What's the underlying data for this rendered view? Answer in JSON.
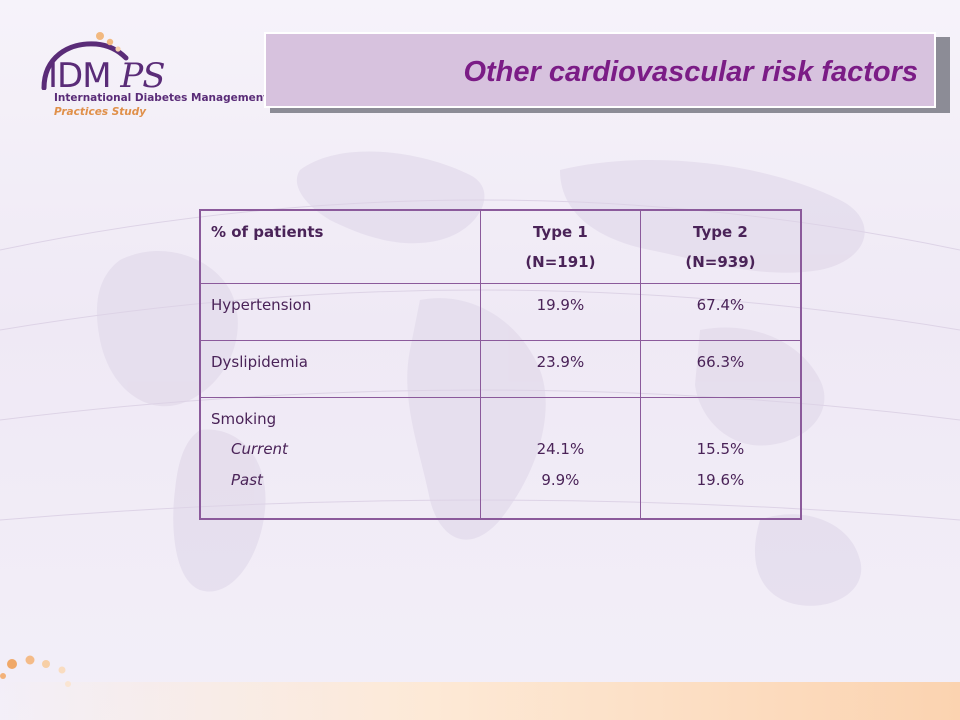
{
  "logo": {
    "text_main": "IDM",
    "text_ps": "PS",
    "line1": "International Diabetes Management",
    "line2": "Practices Study"
  },
  "title": "Other cardiovascular risk factors",
  "table": {
    "header": {
      "col1": "% of patients",
      "col2_line1": "Type 1",
      "col2_line2": "(N=191)",
      "col3_line1": "Type 2",
      "col3_line2": "(N=939)"
    },
    "rows": [
      {
        "label": "Hypertension",
        "type1": "19.9%",
        "type2": "67.4%"
      },
      {
        "label": "Dyslipidemia",
        "type1": "23.9%",
        "type2": "66.3%"
      }
    ],
    "smoking": {
      "label": "Smoking",
      "current_label": "Current",
      "past_label": "Past",
      "current_type1": "24.1%",
      "past_type1": "9.9%",
      "current_type2": "15.5%",
      "past_type2": "19.6%"
    }
  },
  "colors": {
    "title_text": "#7b1c86",
    "title_box": "#d7c2de",
    "table_border": "#8b5a9b",
    "logo_purple": "#5a2c78",
    "logo_orange": "#e0904a"
  }
}
